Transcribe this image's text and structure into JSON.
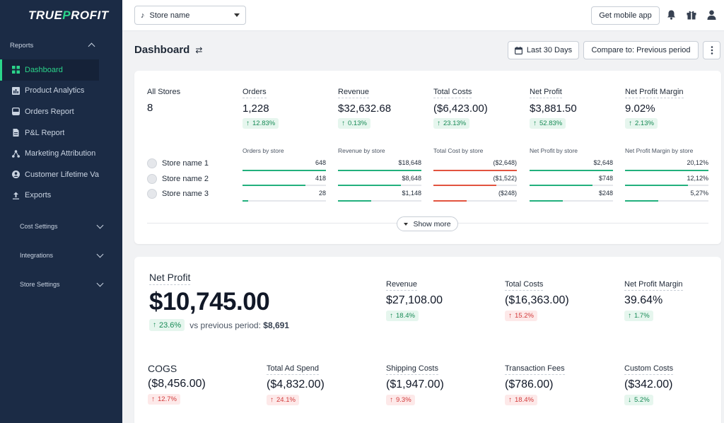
{
  "app": {
    "logo_part1": "TRUE",
    "logo_accent": "P",
    "logo_part2": "ROFIT"
  },
  "sidebar": {
    "reports_label": "Reports",
    "items": [
      {
        "label": "Dashboard",
        "icon": "dashboard-icon"
      },
      {
        "label": "Product Analytics",
        "icon": "bar-chart-icon"
      },
      {
        "label": "Orders Report",
        "icon": "inbox-icon"
      },
      {
        "label": "P&L Report",
        "icon": "document-icon"
      },
      {
        "label": "Marketing Attribution",
        "icon": "network-icon"
      },
      {
        "label": "Customer Lifetime Va",
        "icon": "user-circle-icon"
      },
      {
        "label": "Exports",
        "icon": "upload-icon"
      }
    ],
    "groups": [
      "Cost Settings",
      "Integrations",
      "Store Settings"
    ]
  },
  "topbar": {
    "store_select": "Store name",
    "mobile_app": "Get mobile app"
  },
  "page": {
    "title": "Dashboard",
    "date_range": "Last 30 Days",
    "compare": "Compare to: Previous period"
  },
  "summary": {
    "all_stores_label": "All Stores",
    "all_stores_value": "8",
    "metrics": [
      {
        "label": "Orders",
        "value": "1,228",
        "change": "12.83%",
        "dir": "up"
      },
      {
        "label": "Revenue",
        "value": "$32,632.68",
        "change": "0.13%",
        "dir": "up"
      },
      {
        "label": "Total Costs",
        "value": "($6,423.00)",
        "change": "23.13%",
        "dir": "up"
      },
      {
        "label": "Net Profit",
        "value": "$3,881.50",
        "change": "52.83%",
        "dir": "up"
      },
      {
        "label": "Net Profit Margin",
        "value": "9.02%",
        "change": "2.13%",
        "dir": "up"
      }
    ],
    "stores": [
      "Store name 1",
      "Store name 2",
      "Store name 3"
    ],
    "breakdowns": [
      {
        "title": "Orders by store",
        "color": "#22b07d",
        "rows": [
          {
            "value": "648",
            "pct": 1.0
          },
          {
            "value": "418",
            "pct": 0.75
          },
          {
            "value": "28",
            "pct": 0.07
          }
        ]
      },
      {
        "title": "Revenue by store",
        "color": "#22b07d",
        "rows": [
          {
            "value": "$18,648",
            "pct": 1.0
          },
          {
            "value": "$8,648",
            "pct": 0.75
          },
          {
            "value": "$1,148",
            "pct": 0.4
          }
        ]
      },
      {
        "title": "Total Cost by store",
        "color": "#e2533f",
        "rows": [
          {
            "value": "($2,648)",
            "pct": 1.0
          },
          {
            "value": "($1,522)",
            "pct": 0.75
          },
          {
            "value": "($248)",
            "pct": 0.4
          }
        ]
      },
      {
        "title": "Net Profit by store",
        "color": "#22b07d",
        "rows": [
          {
            "value": "$2,648",
            "pct": 1.0
          },
          {
            "value": "$748",
            "pct": 0.75
          },
          {
            "value": "$248",
            "pct": 0.4
          }
        ]
      },
      {
        "title": "Net Profit Margin by store",
        "color": "#22b07d",
        "rows": [
          {
            "value": "20,12%",
            "pct": 1.0
          },
          {
            "value": "12,12%",
            "pct": 0.75
          },
          {
            "value": "5,27%",
            "pct": 0.4
          }
        ]
      }
    ],
    "show_more": "Show more"
  },
  "netprofit": {
    "label": "Net Profit",
    "value": "$10,745.00",
    "change": "23.6%",
    "vs_text": "vs previous period:",
    "vs_value": "$8,691",
    "top_metrics": [
      {
        "label": "Revenue",
        "value": "$27,108.00",
        "change": "18.4%",
        "dir": "up",
        "tone": "good"
      },
      {
        "label": "Total Costs",
        "value": "($16,363.00)",
        "change": "15.2%",
        "dir": "up",
        "tone": "bad"
      },
      {
        "label": "Net Profit Margin",
        "value": "39.64%",
        "change": "1.7%",
        "dir": "up",
        "tone": "good"
      }
    ],
    "bottom_metrics": [
      {
        "label": "COGS",
        "value": "($8,456.00)",
        "change": "12.7%",
        "dir": "up",
        "tone": "bad"
      },
      {
        "label": "Total Ad Spend",
        "value": "($4,832.00)",
        "change": "24.1%",
        "dir": "up",
        "tone": "bad"
      },
      {
        "label": "Shipping Costs",
        "value": "($1,947.00)",
        "change": "9.3%",
        "dir": "up",
        "tone": "bad"
      },
      {
        "label": "Transaction Fees",
        "value": "($786.00)",
        "change": "18.4%",
        "dir": "up",
        "tone": "bad"
      },
      {
        "label": "Custom Costs",
        "value": "($342.00)",
        "change": "5.2%",
        "dir": "down",
        "tone": "good"
      }
    ]
  }
}
